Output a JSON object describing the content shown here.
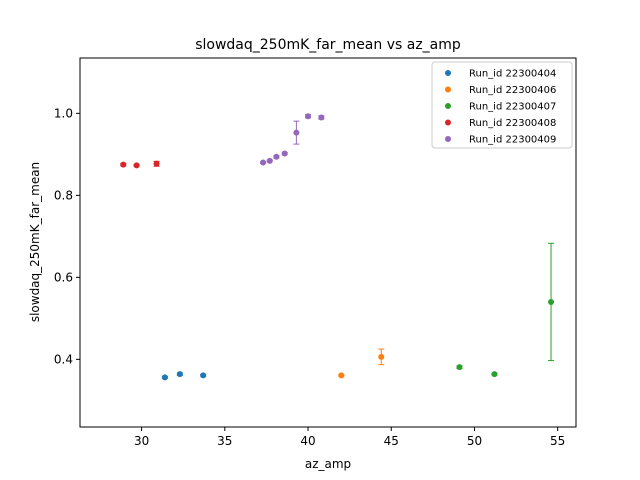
{
  "chart_data": {
    "type": "scatter",
    "title": "slowdaq_250mK_far_mean vs az_amp",
    "xlabel": "az_amp",
    "ylabel": "slowdaq_250mK_far_mean",
    "xlim": [
      26.3,
      56.1
    ],
    "ylim": [
      0.235,
      1.135
    ],
    "xticks": [
      30,
      35,
      40,
      45,
      50,
      55
    ],
    "yticks": [
      0.4,
      0.6,
      0.8,
      1.0
    ],
    "xtick_labels": [
      "30",
      "35",
      "40",
      "45",
      "50",
      "55"
    ],
    "ytick_labels": [
      "0.4",
      "0.6",
      "0.8",
      "1.0"
    ],
    "grid": false,
    "legend_position": "top-right",
    "series": [
      {
        "name": "Run_id 22300404",
        "color": "#1f77b4",
        "points": [
          {
            "x": 31.4,
            "y": 0.356,
            "err": 0.002
          },
          {
            "x": 32.3,
            "y": 0.364,
            "err": 0.003
          },
          {
            "x": 33.7,
            "y": 0.361,
            "err": 0.002
          }
        ]
      },
      {
        "name": "Run_id 22300406",
        "color": "#ff7f0e",
        "points": [
          {
            "x": 42.0,
            "y": 0.361,
            "err": 0.002
          },
          {
            "x": 44.4,
            "y": 0.406,
            "err": 0.019
          }
        ]
      },
      {
        "name": "Run_id 22300407",
        "color": "#2ca02c",
        "points": [
          {
            "x": 49.1,
            "y": 0.381,
            "err": 0.003
          },
          {
            "x": 51.2,
            "y": 0.364,
            "err": 0.002
          },
          {
            "x": 54.6,
            "y": 0.54,
            "err": 0.143
          }
        ]
      },
      {
        "name": "Run_id 22300408",
        "color": "#d62728",
        "points": [
          {
            "x": 28.9,
            "y": 0.875,
            "err": 0.003
          },
          {
            "x": 29.7,
            "y": 0.873,
            "err": 0.002
          },
          {
            "x": 30.9,
            "y": 0.877,
            "err": 0.006
          }
        ]
      },
      {
        "name": "Run_id 22300409",
        "color": "#9467bd",
        "points": [
          {
            "x": 37.3,
            "y": 0.88,
            "err": 0.002
          },
          {
            "x": 37.7,
            "y": 0.884,
            "err": 0.002
          },
          {
            "x": 38.1,
            "y": 0.894,
            "err": 0.003
          },
          {
            "x": 38.6,
            "y": 0.902,
            "err": 0.002
          },
          {
            "x": 39.3,
            "y": 0.953,
            "err": 0.028
          },
          {
            "x": 40.0,
            "y": 0.993,
            "err": 0.004
          },
          {
            "x": 40.8,
            "y": 0.99,
            "err": 0.004
          }
        ]
      }
    ]
  }
}
